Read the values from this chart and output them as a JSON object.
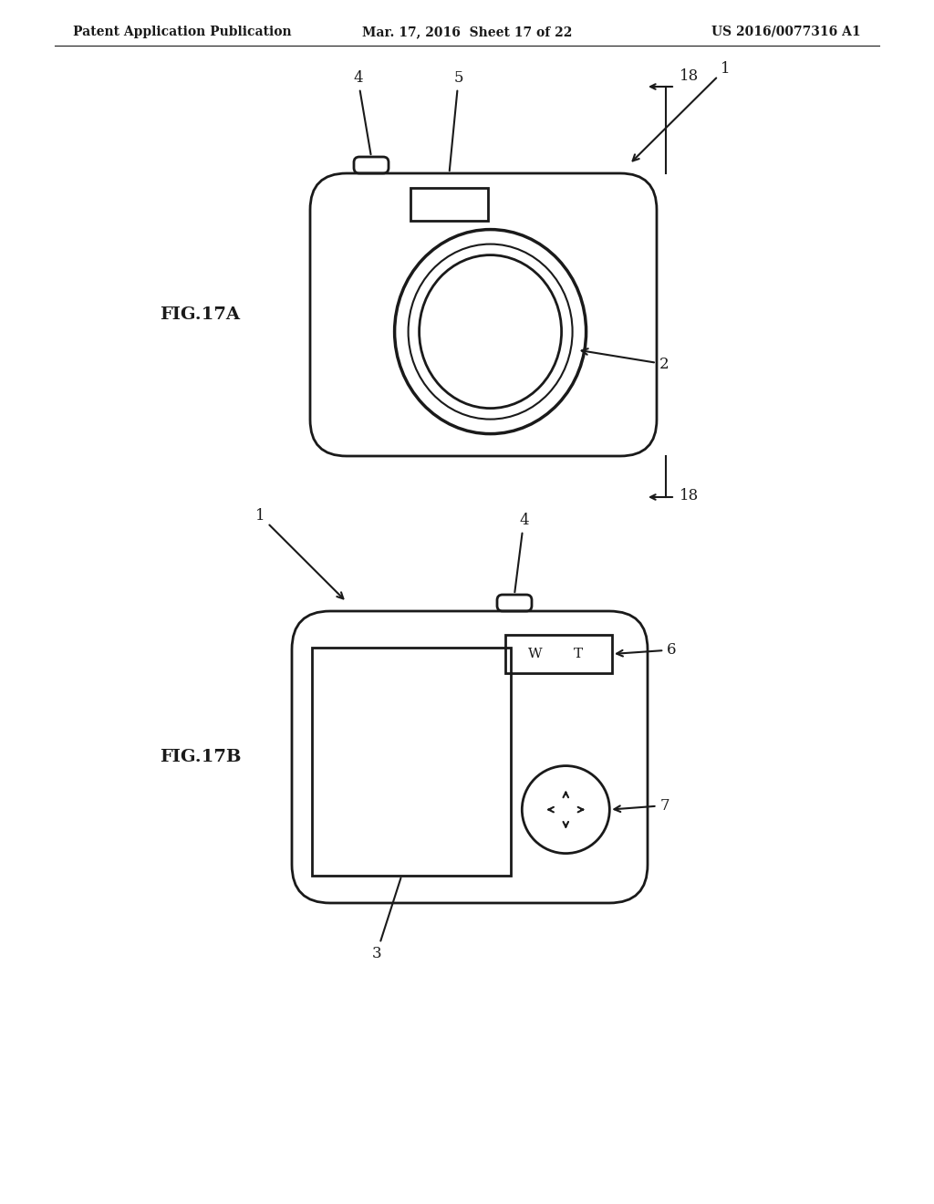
{
  "bg_color": "#ffffff",
  "header_left": "Patent Application Publication",
  "header_mid": "Mar. 17, 2016  Sheet 17 of 22",
  "header_right": "US 2016/0077316 A1",
  "fig17a_label": "FIG.17A",
  "fig17b_label": "FIG.17B",
  "line_color": "#1a1a1a",
  "text_color": "#1a1a1a",
  "fig_label_fontsize": 14,
  "header_fontsize": 10,
  "annotation_fontsize": 12
}
